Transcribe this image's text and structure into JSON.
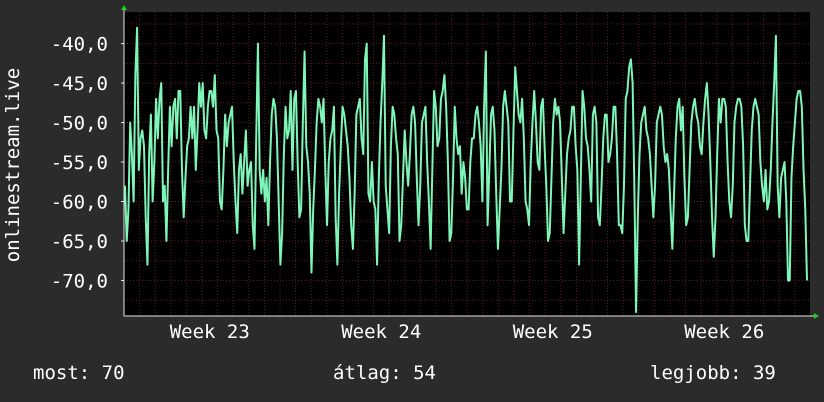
{
  "chart_data": {
    "type": "line",
    "ylabel": "onlinestream.live",
    "y_ticks": [
      "-40,0",
      "-45,0",
      "-50,0",
      "-55,0",
      "-60,0",
      "-65,0",
      "-70,0"
    ],
    "y_tick_values": [
      -40,
      -45,
      -50,
      -55,
      -60,
      -65,
      -70
    ],
    "ylim": [
      -74.5,
      -36
    ],
    "x_ticks": [
      "Week 23",
      "Week 24",
      "Week 25",
      "Week 26"
    ],
    "grid": true,
    "series": [
      {
        "values": [
          -58,
          -65,
          -61,
          -50,
          -54,
          -60,
          -44,
          -38,
          -56,
          -52,
          -51,
          -53,
          -62,
          -68,
          -54,
          -49,
          -60,
          -55,
          -47,
          -52,
          -47,
          -45,
          -60,
          -58,
          -65,
          -56,
          -48,
          -53,
          -48,
          -47,
          -52,
          -46,
          -46,
          -56,
          -62,
          -57,
          -53,
          -52,
          -48,
          -52,
          -48,
          -56,
          -51,
          -45,
          -48,
          -45,
          -51,
          -52,
          -48,
          -46,
          -46,
          -48,
          -44,
          -51,
          -52,
          -60,
          -61,
          -56,
          -49,
          -53,
          -50,
          -49,
          -48,
          -55,
          -60,
          -64,
          -56,
          -54,
          -59,
          -55,
          -51,
          -58,
          -56,
          -55,
          -63,
          -66,
          -52,
          -40,
          -56,
          -59,
          -56,
          -60,
          -57,
          -63,
          -55,
          -49,
          -47,
          -48,
          -52,
          -60,
          -68,
          -64,
          -54,
          -48,
          -52,
          -51,
          -46,
          -56,
          -47,
          -46,
          -55,
          -62,
          -61,
          -50,
          -41,
          -53,
          -55,
          -59,
          -69,
          -61,
          -56,
          -50,
          -47,
          -48,
          -50,
          -47,
          -56,
          -63,
          -55,
          -52,
          -51,
          -48,
          -62,
          -68,
          -59,
          -53,
          -48,
          -49,
          -51,
          -53,
          -57,
          -63,
          -66,
          -59,
          -49,
          -48,
          -47,
          -52,
          -54,
          -42,
          -40,
          -59,
          -60,
          -55,
          -60,
          -61,
          -68,
          -57,
          -50,
          -45,
          -39,
          -58,
          -61,
          -64,
          -53,
          -48,
          -49,
          -52,
          -54,
          -65,
          -63,
          -57,
          -51,
          -55,
          -58,
          -54,
          -49,
          -48,
          -50,
          -57,
          -63,
          -58,
          -50,
          -49,
          -48,
          -55,
          -60,
          -66,
          -56,
          -46,
          -48,
          -53,
          -52,
          -47,
          -46,
          -44,
          -48,
          -55,
          -65,
          -64,
          -57,
          -48,
          -52,
          -54,
          -53,
          -59,
          -55,
          -57,
          -61,
          -61,
          -55,
          -52,
          -52,
          -49,
          -48,
          -50,
          -53,
          -60,
          -48,
          -41,
          -63,
          -56,
          -49,
          -48,
          -51,
          -59,
          -66,
          -61,
          -56,
          -48,
          -46,
          -48,
          -50,
          -60,
          -60,
          -51,
          -43,
          -46,
          -49,
          -50,
          -47,
          -52,
          -60,
          -61,
          -63,
          -55,
          -50,
          -46,
          -50,
          -55,
          -56,
          -48,
          -47,
          -53,
          -58,
          -65,
          -64,
          -57,
          -50,
          -47,
          -49,
          -48,
          -50,
          -57,
          -64,
          -59,
          -54,
          -52,
          -51,
          -48,
          -48,
          -53,
          -56,
          -68,
          -57,
          -46,
          -48,
          -52,
          -53,
          -56,
          -60,
          -49,
          -48,
          -50,
          -62,
          -63,
          -58,
          -52,
          -49,
          -49,
          -55,
          -54,
          -52,
          -48,
          -48,
          -54,
          -63,
          -63,
          -64,
          -58,
          -47,
          -46,
          -43,
          -42,
          -45,
          -58,
          -74,
          -62,
          -54,
          -50,
          -49,
          -48,
          -51,
          -52,
          -54,
          -58,
          -62,
          -58,
          -50,
          -49,
          -48,
          -49,
          -53,
          -55,
          -54,
          -56,
          -61,
          -66,
          -59,
          -52,
          -48,
          -47,
          -51,
          -48,
          -57,
          -63,
          -62,
          -56,
          -50,
          -48,
          -47,
          -49,
          -50,
          -53,
          -54,
          -50,
          -47,
          -45,
          -49,
          -55,
          -62,
          -67,
          -62,
          -54,
          -47,
          -50,
          -47,
          -47,
          -48,
          -55,
          -60,
          -62,
          -58,
          -50,
          -48,
          -47,
          -47,
          -48,
          -53,
          -63,
          -65,
          -65,
          -58,
          -51,
          -48,
          -47,
          -48,
          -49,
          -55,
          -58,
          -60,
          -56,
          -61,
          -60,
          -56,
          -50,
          -45,
          -39,
          -58,
          -62,
          -57,
          -56,
          -55,
          -60,
          -70,
          -70,
          -57,
          -53,
          -50,
          -47,
          -46,
          -46,
          -48,
          -56,
          -61,
          -70
        ]
      }
    ],
    "line_color": "#7ff5b8",
    "plot_background": "#000000",
    "grid_color": "#5a1e1e",
    "axis_color": "#e6e6e6"
  },
  "stats": {
    "current": "most: 70",
    "average": "átlag: 54",
    "best": "legjobb: 39"
  }
}
